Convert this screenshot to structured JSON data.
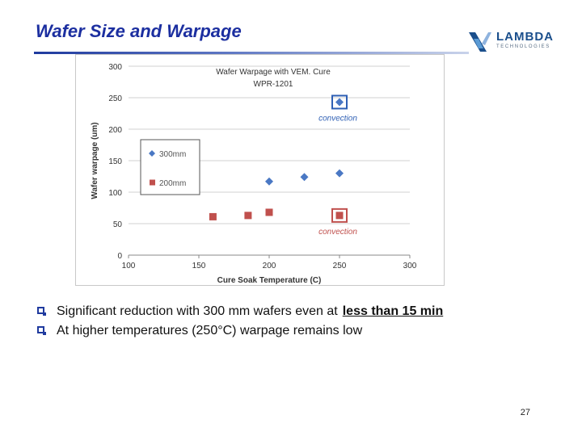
{
  "slide": {
    "title": "Wafer Size and Warpage",
    "page_number": "27"
  },
  "logo": {
    "word": "LAMBDA",
    "sub": "TECHNOLOGIES",
    "colors": {
      "primary": "#1b4f8c",
      "accent": "#5b9bd5"
    }
  },
  "bullets": [
    {
      "text": "Significant reduction with 300 mm wafers even at",
      "emphasis": "less than 15 min"
    },
    {
      "text": "At higher temperatures (250°C) warpage remains low",
      "emphasis": ""
    }
  ],
  "chart_data": {
    "type": "scatter",
    "title": "Wafer Warpage with VEM. Cure",
    "subtitle": "WPR-1201",
    "xlabel": "Cure Soak Temperature (C)",
    "ylabel": "Wafer warpage (um)",
    "xlim": [
      100,
      300
    ],
    "ylim": [
      0,
      300
    ],
    "xticks": [
      100,
      150,
      200,
      250,
      300
    ],
    "yticks": [
      0,
      50,
      100,
      150,
      200,
      250,
      300
    ],
    "grid": "horizontal",
    "legend_position": "left",
    "series": [
      {
        "name": "300mm",
        "marker": "diamond",
        "color": "#4a78c4",
        "points": [
          [
            200,
            117
          ],
          [
            225,
            124
          ],
          [
            250,
            130
          ],
          [
            250,
            243
          ]
        ]
      },
      {
        "name": "200mm",
        "marker": "square",
        "color": "#c0504d",
        "points": [
          [
            160,
            61
          ],
          [
            185,
            63
          ],
          [
            200,
            68
          ],
          [
            250,
            63
          ]
        ]
      }
    ],
    "annotations": [
      {
        "text": "convection",
        "series": "300mm",
        "x": 250,
        "y": 243,
        "color": "#2e5fb4"
      },
      {
        "text": "convection",
        "series": "200mm",
        "x": 250,
        "y": 63,
        "color": "#c0504d"
      }
    ]
  }
}
